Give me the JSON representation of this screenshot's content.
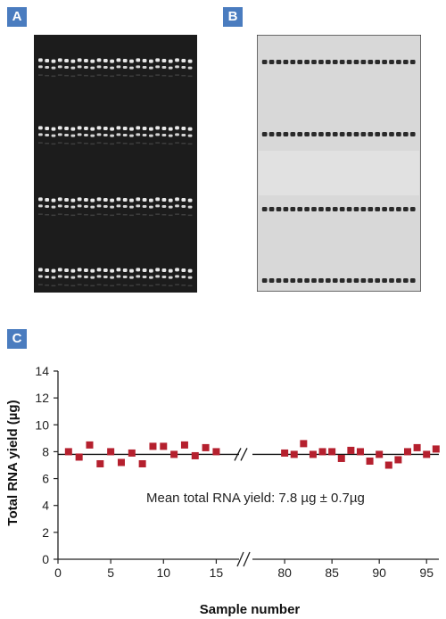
{
  "panels": {
    "a_label": "A",
    "b_label": "B",
    "c_label": "C"
  },
  "gel_a": {
    "lanes": 24,
    "band_groups": 4,
    "background": "#1c1c1c",
    "band_color": "#f4f4f4"
  },
  "gel_b": {
    "lanes": 22,
    "band_groups": 4,
    "background": "#d8d8d8",
    "band_color": "#2a2a2a"
  },
  "chart_data": {
    "type": "scatter",
    "title": "",
    "xlabel": "Sample number",
    "ylabel": "Total RNA yield (µg)",
    "ylim": [
      0,
      14
    ],
    "yticks": [
      0,
      2,
      4,
      6,
      8,
      10,
      12,
      14
    ],
    "xticks_left": [
      0,
      5,
      10,
      15
    ],
    "xticks_right": [
      80,
      85,
      90,
      95
    ],
    "x_left_range": [
      0,
      17.5
    ],
    "x_right_range": [
      76.5,
      96.3
    ],
    "axis_break": true,
    "mean_line": 7.8,
    "annotation": "Mean total RNA yield: 7.8 µg ± 0.7µg",
    "marker_color": "#b5202e",
    "series": [
      {
        "x": [
          1,
          2,
          3,
          4,
          5,
          6,
          7,
          8,
          9,
          10,
          11,
          12,
          13,
          14,
          15
        ],
        "y": [
          8.0,
          7.6,
          8.5,
          7.1,
          8.0,
          7.2,
          7.9,
          7.1,
          8.4,
          8.4,
          7.8,
          8.5,
          7.7,
          8.3,
          8.0
        ]
      },
      {
        "x": [
          80,
          81,
          82,
          83,
          84,
          85,
          86,
          87,
          88,
          89,
          90,
          91,
          92,
          93,
          94,
          95,
          96
        ],
        "y": [
          7.9,
          7.8,
          8.6,
          7.8,
          8.0,
          8.0,
          7.5,
          8.1,
          8.0,
          7.3,
          7.8,
          7.0,
          7.4,
          8.0,
          8.3,
          7.8,
          8.2
        ]
      }
    ]
  }
}
